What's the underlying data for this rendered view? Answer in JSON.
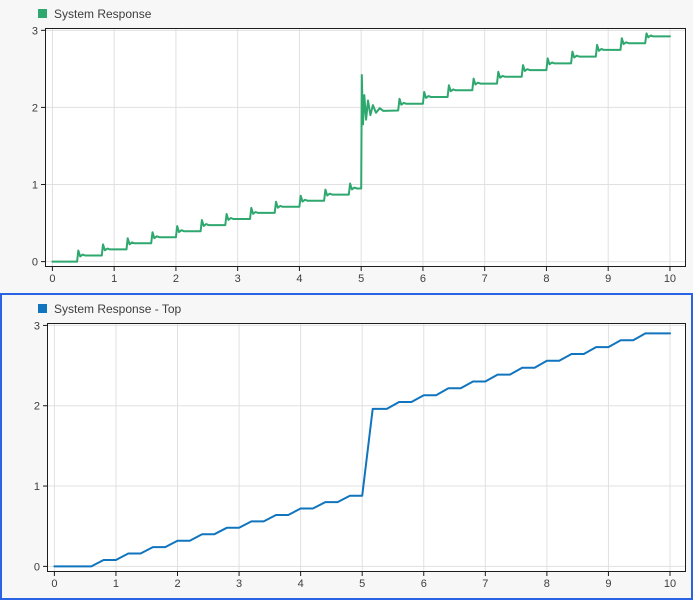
{
  "colors": {
    "panel_background": "#f7f7f7",
    "plot_background": "#ffffff",
    "grid": "#e0e0e0",
    "axis_box": "#1c1c1c",
    "tick_label": "#3d3d3d",
    "selection_border": "#2a64e4",
    "series_green": "#2ea86e",
    "series_blue": "#1074be"
  },
  "chart_data": [
    {
      "type": "line",
      "legend": "System Response",
      "legend_position": "top-left",
      "color": "#2ea86e",
      "selected": false,
      "xlabel": "",
      "ylabel": "",
      "grid": true,
      "xlim": [
        -0.12,
        10.26
      ],
      "ylim": [
        -0.07,
        3.03
      ],
      "xticks": [
        0,
        1,
        2,
        3,
        4,
        5,
        6,
        7,
        8,
        9,
        10
      ],
      "yticks": [
        0,
        1,
        2,
        3
      ],
      "points": [
        [
          0,
          0
        ],
        [
          0.4,
          0
        ],
        [
          0.42,
          0.144
        ],
        [
          0.45,
          0.067
        ],
        [
          0.49,
          0.091
        ],
        [
          0.53,
          0.079
        ],
        [
          0.8,
          0.079
        ],
        [
          0.82,
          0.223
        ],
        [
          0.85,
          0.146
        ],
        [
          0.89,
          0.17
        ],
        [
          0.93,
          0.158
        ],
        [
          1.2,
          0.158
        ],
        [
          1.22,
          0.302
        ],
        [
          1.25,
          0.225
        ],
        [
          1.29,
          0.249
        ],
        [
          1.33,
          0.237
        ],
        [
          1.6,
          0.237
        ],
        [
          1.62,
          0.381
        ],
        [
          1.65,
          0.304
        ],
        [
          1.69,
          0.328
        ],
        [
          1.73,
          0.316
        ],
        [
          2.0,
          0.316
        ],
        [
          2.02,
          0.46
        ],
        [
          2.05,
          0.383
        ],
        [
          2.09,
          0.407
        ],
        [
          2.13,
          0.395
        ],
        [
          2.4,
          0.395
        ],
        [
          2.42,
          0.539
        ],
        [
          2.45,
          0.462
        ],
        [
          2.49,
          0.486
        ],
        [
          2.53,
          0.474
        ],
        [
          2.8,
          0.474
        ],
        [
          2.82,
          0.618
        ],
        [
          2.85,
          0.541
        ],
        [
          2.89,
          0.565
        ],
        [
          2.93,
          0.553
        ],
        [
          3.2,
          0.553
        ],
        [
          3.22,
          0.697
        ],
        [
          3.25,
          0.62
        ],
        [
          3.29,
          0.644
        ],
        [
          3.33,
          0.632
        ],
        [
          3.6,
          0.632
        ],
        [
          3.62,
          0.776
        ],
        [
          3.65,
          0.699
        ],
        [
          3.69,
          0.723
        ],
        [
          3.73,
          0.711
        ],
        [
          4.0,
          0.711
        ],
        [
          4.02,
          0.855
        ],
        [
          4.05,
          0.778
        ],
        [
          4.09,
          0.802
        ],
        [
          4.13,
          0.79
        ],
        [
          4.4,
          0.79
        ],
        [
          4.42,
          0.934
        ],
        [
          4.45,
          0.857
        ],
        [
          4.49,
          0.881
        ],
        [
          4.53,
          0.869
        ],
        [
          4.8,
          0.869
        ],
        [
          4.82,
          1.013
        ],
        [
          4.85,
          0.936
        ],
        [
          4.89,
          0.96
        ],
        [
          4.93,
          0.948
        ],
        [
          5.0,
          0.948
        ],
        [
          5.01,
          2.42
        ],
        [
          5.03,
          1.78
        ],
        [
          5.05,
          2.16
        ],
        [
          5.08,
          1.84
        ],
        [
          5.11,
          2.09
        ],
        [
          5.15,
          1.9
        ],
        [
          5.19,
          2.03
        ],
        [
          5.24,
          1.93
        ],
        [
          5.3,
          1.99
        ],
        [
          5.36,
          1.955
        ],
        [
          5.6,
          1.96
        ],
        [
          5.62,
          2.112
        ],
        [
          5.65,
          2.035
        ],
        [
          5.69,
          2.059
        ],
        [
          5.73,
          2.047
        ],
        [
          6.0,
          2.047
        ],
        [
          6.02,
          2.2
        ],
        [
          6.05,
          2.123
        ],
        [
          6.09,
          2.147
        ],
        [
          6.13,
          2.135
        ],
        [
          6.4,
          2.135
        ],
        [
          6.42,
          2.287
        ],
        [
          6.45,
          2.21
        ],
        [
          6.49,
          2.234
        ],
        [
          6.53,
          2.222
        ],
        [
          6.8,
          2.222
        ],
        [
          6.82,
          2.374
        ],
        [
          6.85,
          2.297
        ],
        [
          6.89,
          2.321
        ],
        [
          6.93,
          2.309
        ],
        [
          7.2,
          2.309
        ],
        [
          7.22,
          2.462
        ],
        [
          7.25,
          2.385
        ],
        [
          7.29,
          2.409
        ],
        [
          7.33,
          2.397
        ],
        [
          7.6,
          2.397
        ],
        [
          7.62,
          2.549
        ],
        [
          7.65,
          2.472
        ],
        [
          7.69,
          2.496
        ],
        [
          7.73,
          2.484
        ],
        [
          8.0,
          2.484
        ],
        [
          8.02,
          2.636
        ],
        [
          8.05,
          2.559
        ],
        [
          8.09,
          2.583
        ],
        [
          8.13,
          2.571
        ],
        [
          8.4,
          2.571
        ],
        [
          8.42,
          2.724
        ],
        [
          8.45,
          2.647
        ],
        [
          8.49,
          2.671
        ],
        [
          8.53,
          2.659
        ],
        [
          8.8,
          2.659
        ],
        [
          8.82,
          2.811
        ],
        [
          8.85,
          2.734
        ],
        [
          8.89,
          2.758
        ],
        [
          8.93,
          2.746
        ],
        [
          9.2,
          2.746
        ],
        [
          9.22,
          2.898
        ],
        [
          9.25,
          2.821
        ],
        [
          9.29,
          2.845
        ],
        [
          9.33,
          2.833
        ],
        [
          9.6,
          2.833
        ],
        [
          9.62,
          2.96
        ],
        [
          9.65,
          2.909
        ],
        [
          9.69,
          2.933
        ],
        [
          9.73,
          2.921
        ],
        [
          10,
          2.921
        ]
      ]
    },
    {
      "type": "line",
      "legend": "System Response - Top",
      "legend_position": "top-left",
      "color": "#1074be",
      "selected": true,
      "xlabel": "",
      "ylabel": "",
      "grid": true,
      "xlim": [
        -0.12,
        10.26
      ],
      "ylim": [
        -0.07,
        3.03
      ],
      "xticks": [
        0,
        1,
        2,
        3,
        4,
        5,
        6,
        7,
        8,
        9,
        10
      ],
      "yticks": [
        0,
        1,
        2,
        3
      ],
      "points": [
        [
          0,
          0
        ],
        [
          0.6,
          0
        ],
        [
          0.8,
          0.08
        ],
        [
          1.0,
          0.08
        ],
        [
          1.2,
          0.16
        ],
        [
          1.4,
          0.16
        ],
        [
          1.6,
          0.24
        ],
        [
          1.8,
          0.24
        ],
        [
          2.0,
          0.32
        ],
        [
          2.2,
          0.32
        ],
        [
          2.4,
          0.4
        ],
        [
          2.6,
          0.4
        ],
        [
          2.8,
          0.48
        ],
        [
          3.0,
          0.48
        ],
        [
          3.2,
          0.56
        ],
        [
          3.4,
          0.56
        ],
        [
          3.6,
          0.64
        ],
        [
          3.8,
          0.64
        ],
        [
          4.0,
          0.72
        ],
        [
          4.2,
          0.72
        ],
        [
          4.4,
          0.8
        ],
        [
          4.6,
          0.8
        ],
        [
          4.8,
          0.88
        ],
        [
          5.0,
          0.88
        ],
        [
          5.17,
          1.96
        ],
        [
          5.4,
          1.96
        ],
        [
          5.6,
          2.046
        ],
        [
          5.8,
          2.046
        ],
        [
          6.0,
          2.131
        ],
        [
          6.2,
          2.131
        ],
        [
          6.4,
          2.217
        ],
        [
          6.6,
          2.217
        ],
        [
          6.8,
          2.302
        ],
        [
          7.0,
          2.302
        ],
        [
          7.2,
          2.388
        ],
        [
          7.4,
          2.388
        ],
        [
          7.6,
          2.473
        ],
        [
          7.8,
          2.473
        ],
        [
          8.0,
          2.559
        ],
        [
          8.2,
          2.559
        ],
        [
          8.4,
          2.644
        ],
        [
          8.6,
          2.644
        ],
        [
          8.8,
          2.73
        ],
        [
          9.0,
          2.73
        ],
        [
          9.2,
          2.815
        ],
        [
          9.4,
          2.815
        ],
        [
          9.6,
          2.901
        ],
        [
          10,
          2.901
        ]
      ]
    }
  ]
}
